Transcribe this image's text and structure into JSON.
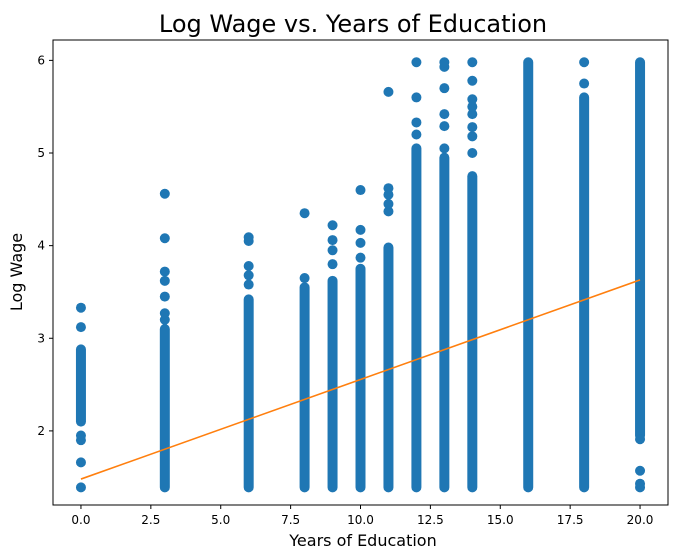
{
  "chart_data": {
    "type": "scatter",
    "title": "Log Wage vs. Years of Education",
    "xlabel": "Years of Education",
    "ylabel": "Log Wage",
    "xlim": [
      -1.0,
      21.0
    ],
    "ylim": [
      1.2,
      6.22
    ],
    "xticks": [
      0.0,
      2.5,
      5.0,
      7.5,
      10.0,
      12.5,
      15.0,
      17.5,
      20.0
    ],
    "xtick_labels": [
      "0.0",
      "2.5",
      "5.0",
      "7.5",
      "10.0",
      "12.5",
      "15.0",
      "17.5",
      "20.0"
    ],
    "yticks": [
      2,
      3,
      4,
      5,
      6
    ],
    "ytick_labels": [
      "2",
      "3",
      "4",
      "5",
      "6"
    ],
    "grid": false,
    "legend": null,
    "series": [
      {
        "name": "observations",
        "kind": "scatter",
        "color": "#1f77b4",
        "columns": [
          {
            "x": 0,
            "dense_range": [
              2.1,
              2.88
            ],
            "points": [
              1.39,
              1.66,
              1.9,
              1.95,
              3.12,
              3.33
            ]
          },
          {
            "x": 3,
            "dense_range": [
              1.39,
              3.1
            ],
            "points": [
              3.2,
              3.27,
              3.45,
              3.62,
              3.72,
              4.08,
              4.56
            ]
          },
          {
            "x": 6,
            "dense_range": [
              1.39,
              3.42
            ],
            "points": [
              3.58,
              3.68,
              3.78,
              4.05,
              4.09
            ]
          },
          {
            "x": 8,
            "dense_range": [
              1.39,
              3.55
            ],
            "points": [
              3.65,
              4.35
            ]
          },
          {
            "x": 9,
            "dense_range": [
              1.39,
              3.62
            ],
            "points": [
              3.8,
              3.95,
              4.06,
              4.22
            ]
          },
          {
            "x": 10,
            "dense_range": [
              1.39,
              3.75
            ],
            "points": [
              3.87,
              4.03,
              4.17,
              4.6
            ]
          },
          {
            "x": 11,
            "dense_range": [
              1.39,
              3.98
            ],
            "points": [
              4.37,
              4.45,
              4.55,
              4.62,
              5.66
            ]
          },
          {
            "x": 12,
            "dense_range": [
              1.39,
              5.05
            ],
            "points": [
              5.2,
              5.33,
              5.6,
              5.98
            ]
          },
          {
            "x": 13,
            "dense_range": [
              1.39,
              4.95
            ],
            "points": [
              5.05,
              5.29,
              5.42,
              5.7,
              5.93,
              5.98
            ]
          },
          {
            "x": 14,
            "dense_range": [
              1.39,
              4.75
            ],
            "points": [
              5.0,
              5.18,
              5.28,
              5.42,
              5.5,
              5.58,
              5.78,
              5.98
            ]
          },
          {
            "x": 16,
            "dense_range": [
              1.39,
              5.98
            ],
            "points": []
          },
          {
            "x": 18,
            "dense_range": [
              1.39,
              5.6
            ],
            "points": [
              5.75,
              5.98
            ]
          },
          {
            "x": 20,
            "dense_range": [
              1.95,
              5.98
            ],
            "points": [
              1.39,
              1.43,
              1.57,
              1.91
            ]
          }
        ]
      },
      {
        "name": "fitted line",
        "kind": "line",
        "color": "#ff7f0e",
        "x": [
          0,
          20
        ],
        "y": [
          1.48,
          3.63
        ]
      }
    ]
  }
}
